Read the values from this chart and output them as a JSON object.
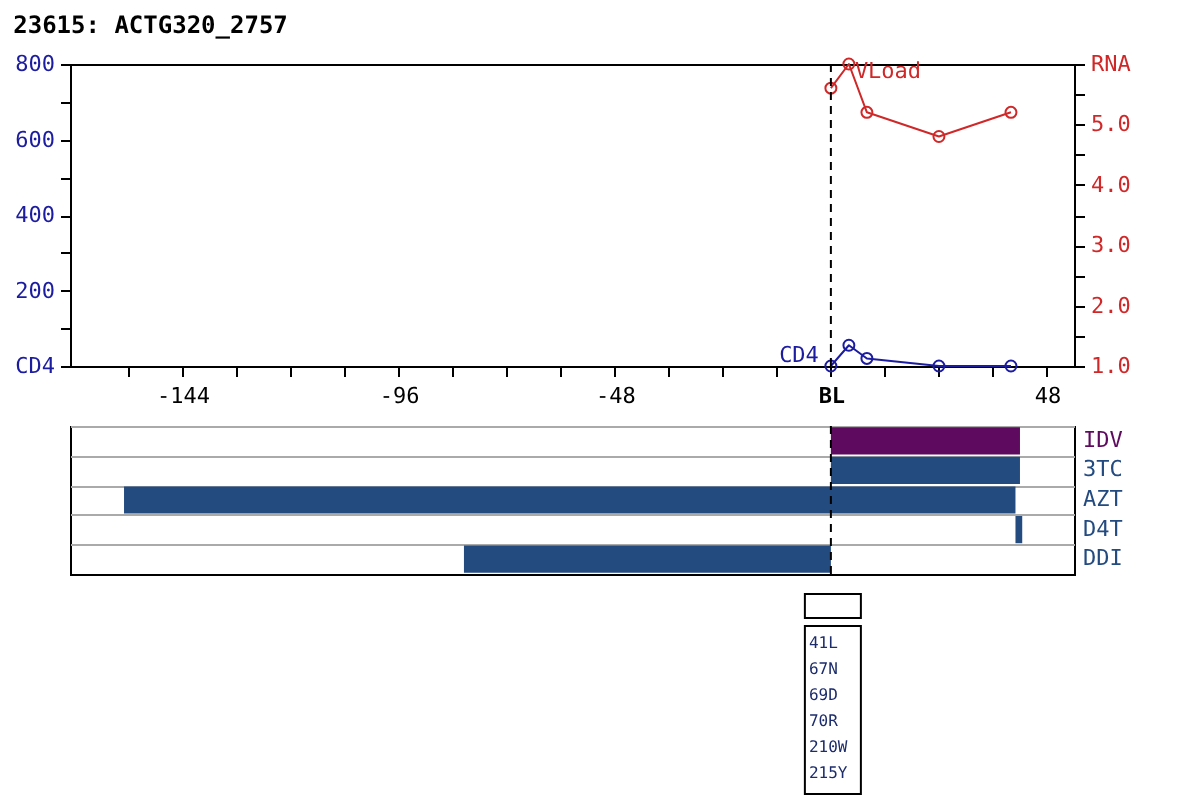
{
  "chart_data": [
    {
      "type": "line",
      "title": "23615: ACTG320_2757",
      "x": [
        0,
        4,
        8,
        24,
        40
      ],
      "xlim": [
        -169,
        54
      ],
      "xticks": [
        {
          "value": -156,
          "label": null
        },
        -144,
        {
          "value": -132,
          "label": null
        },
        {
          "value": -120,
          "label": null
        },
        {
          "value": -108,
          "label": null
        },
        -96,
        {
          "value": -84,
          "label": null
        },
        {
          "value": -72,
          "label": null
        },
        {
          "value": -60,
          "label": null
        },
        -48,
        {
          "value": -36,
          "label": null
        },
        {
          "value": -24,
          "label": null
        },
        {
          "value": -12,
          "label": null
        },
        {
          "value": 0,
          "label": "BL"
        },
        {
          "value": 12,
          "label": null
        },
        {
          "value": 24,
          "label": null
        },
        {
          "value": 36,
          "label": null
        },
        48
      ],
      "ylim": [
        0,
        800
      ],
      "yticks": [
        {
          "value": 0,
          "label": "CD4"
        },
        {
          "value": 100,
          "label": null
        },
        200,
        {
          "value": 300,
          "label": null
        },
        400,
        {
          "value": 500,
          "label": null
        },
        600,
        {
          "value": 700,
          "label": null
        },
        800
      ],
      "y2lim": [
        1,
        6
      ],
      "y2ticks": [
        {
          "value": 1,
          "label": "1.0"
        },
        {
          "value": 1.5,
          "label": null
        },
        {
          "value": 2,
          "label": "2.0"
        },
        {
          "value": 2.5,
          "label": null
        },
        {
          "value": 3,
          "label": "3.0"
        },
        {
          "value": 3.5,
          "label": null
        },
        {
          "value": 4,
          "label": "4.0"
        },
        {
          "value": 4.5,
          "label": null
        },
        {
          "value": 5,
          "label": "5.0"
        },
        {
          "value": 5.5,
          "label": null
        },
        {
          "value": 6,
          "label": "RNA"
        }
      ],
      "series": [
        {
          "name": "CD4",
          "color": "#1c1ca0",
          "values": [
            0,
            55,
            20,
            0,
            0
          ]
        },
        {
          "name": "VLoad",
          "color": "#d02828",
          "axis": "y2",
          "values": [
            5.6,
            6.0,
            5.2,
            4.8,
            5.2
          ]
        }
      ],
      "marker": "circle",
      "ref_lines": [
        {
          "axis": "x",
          "value": 0,
          "color": "#000000",
          "line_style": "dashed"
        }
      ]
    },
    {
      "type": "bar",
      "orientation": "horizontal",
      "categories": [
        "IDV",
        "3TC",
        "AZT",
        "D4T",
        "DDI"
      ],
      "base": [
        0,
        0,
        -157,
        41,
        -81.5
      ],
      "values": [
        42,
        42,
        198,
        1.5,
        81.5
      ],
      "colors": [
        "#5e0a5e",
        "#234b80",
        "#234b80",
        "#234b80",
        "#234b80"
      ],
      "xlim": [
        -169,
        54
      ],
      "tick_labels": "y",
      "grid": "y",
      "ref_lines": [
        {
          "axis": "x",
          "value": 0,
          "color": "#000000",
          "line_style": "dashed"
        }
      ],
      "annotations": [
        "41L",
        "67N",
        "69D",
        "70R",
        "210W",
        "215Y"
      ]
    }
  ]
}
